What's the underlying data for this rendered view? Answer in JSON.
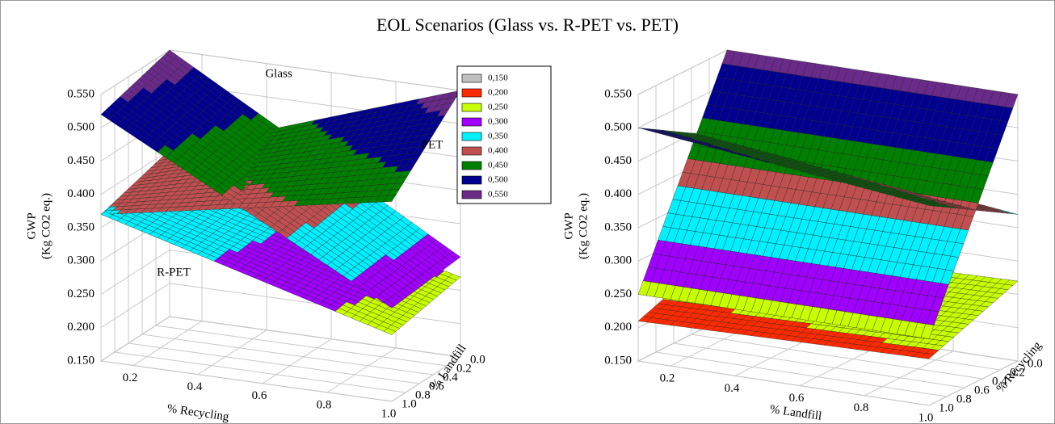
{
  "chart_data": [
    {
      "type": "surface3d",
      "title": "EOL Scenarios (Glass vs. R-PET vs. PET)",
      "zlabel": [
        "GWP",
        "(Kg CO2 eq.)"
      ],
      "xlabel": "% Recycling",
      "ylabel": "% Landfill",
      "xlim": [
        0.1,
        1.0
      ],
      "ylim": [
        1.0,
        0.0
      ],
      "zlim": [
        0.15,
        0.55
      ],
      "xticks": [
        0.2,
        0.4,
        0.6,
        0.8,
        {
          "value": 1.0,
          "label": "1.0"
        }
      ],
      "yticks": [
        {
          "value": 0.0,
          "label": "0.0"
        },
        0.2,
        0.4,
        0.6,
        0.8,
        {
          "value": 1.0,
          "label": "1.0"
        }
      ],
      "zticks": [
        {
          "value": 0.15,
          "label": "0.150"
        },
        {
          "value": 0.2,
          "label": "0.200"
        },
        {
          "value": 0.25,
          "label": "0.250"
        },
        {
          "value": 0.3,
          "label": "0.300"
        },
        {
          "value": 0.35,
          "label": "0.350"
        },
        {
          "value": 0.4,
          "label": "0.400"
        },
        {
          "value": 0.45,
          "label": "0.450"
        },
        {
          "value": 0.5,
          "label": "0.500"
        },
        {
          "value": 0.55,
          "label": "0.550"
        }
      ],
      "legend": [
        {
          "value": 0.15,
          "label": "0,150",
          "color": "#c0c0c0"
        },
        {
          "value": 0.2,
          "label": "0,200",
          "color": "#ff2a00"
        },
        {
          "value": 0.25,
          "label": "0,250",
          "color": "#c8ff00"
        },
        {
          "value": 0.3,
          "label": "0,300",
          "color": "#a000ff"
        },
        {
          "value": 0.35,
          "label": "0,350",
          "color": "#00f0ff"
        },
        {
          "value": 0.4,
          "label": "0,400",
          "color": "#c05050"
        },
        {
          "value": 0.45,
          "label": "0,450",
          "color": "#008000"
        },
        {
          "value": 0.5,
          "label": "0,500",
          "color": "#000090"
        },
        {
          "value": 0.55,
          "label": "0,550",
          "color": "#6a2a8a"
        }
      ],
      "surfaces": [
        {
          "name": "Glass",
          "z": [
            [
              0.52,
              0.29
            ],
            [
              0.55,
              0.3
            ]
          ]
        },
        {
          "name": "PET",
          "z": [
            [
              0.37,
              0.45
            ],
            [
              0.4,
              0.55
            ]
          ]
        },
        {
          "name": "R-PET",
          "z": [
            [
              0.37,
              0.25
            ],
            [
              0.38,
              0.27
            ]
          ]
        }
      ]
    },
    {
      "type": "surface3d",
      "zlabel": [
        "GWP",
        "(Kg CO2 eq.)"
      ],
      "xlabel": "% Landfill",
      "ylabel": "% Recycling",
      "xlim": [
        0.1,
        1.0
      ],
      "ylim": [
        1.0,
        0.0
      ],
      "zlim": [
        0.15,
        0.55
      ],
      "xticks": [
        0.2,
        0.4,
        0.6,
        0.8,
        {
          "value": 1.0,
          "label": "1.0"
        }
      ],
      "yticks": [
        {
          "value": 0.0,
          "label": "0.0"
        },
        0.2,
        0.4,
        0.6,
        0.8,
        {
          "value": 1.0,
          "label": "1.0"
        }
      ],
      "zticks": [
        {
          "value": 0.15,
          "label": "0.150"
        },
        {
          "value": 0.2,
          "label": "0.200"
        },
        {
          "value": 0.25,
          "label": "0.250"
        },
        {
          "value": 0.3,
          "label": "0.300"
        },
        {
          "value": 0.35,
          "label": "0.350"
        },
        {
          "value": 0.4,
          "label": "0.400"
        },
        {
          "value": 0.45,
          "label": "0.450"
        },
        {
          "value": 0.5,
          "label": "0.500"
        },
        {
          "value": 0.55,
          "label": "0.550"
        }
      ],
      "surfaces": [
        {
          "z": [
            [
              0.21,
              0.22
            ],
            [
              0.26,
              0.27
            ]
          ]
        },
        {
          "z": [
            [
              0.25,
              0.25
            ],
            [
              0.55,
              0.55
            ]
          ]
        },
        {
          "z": [
            [
              0.5,
              0.45
            ],
            [
              0.42,
              0.37
            ]
          ]
        }
      ]
    }
  ]
}
